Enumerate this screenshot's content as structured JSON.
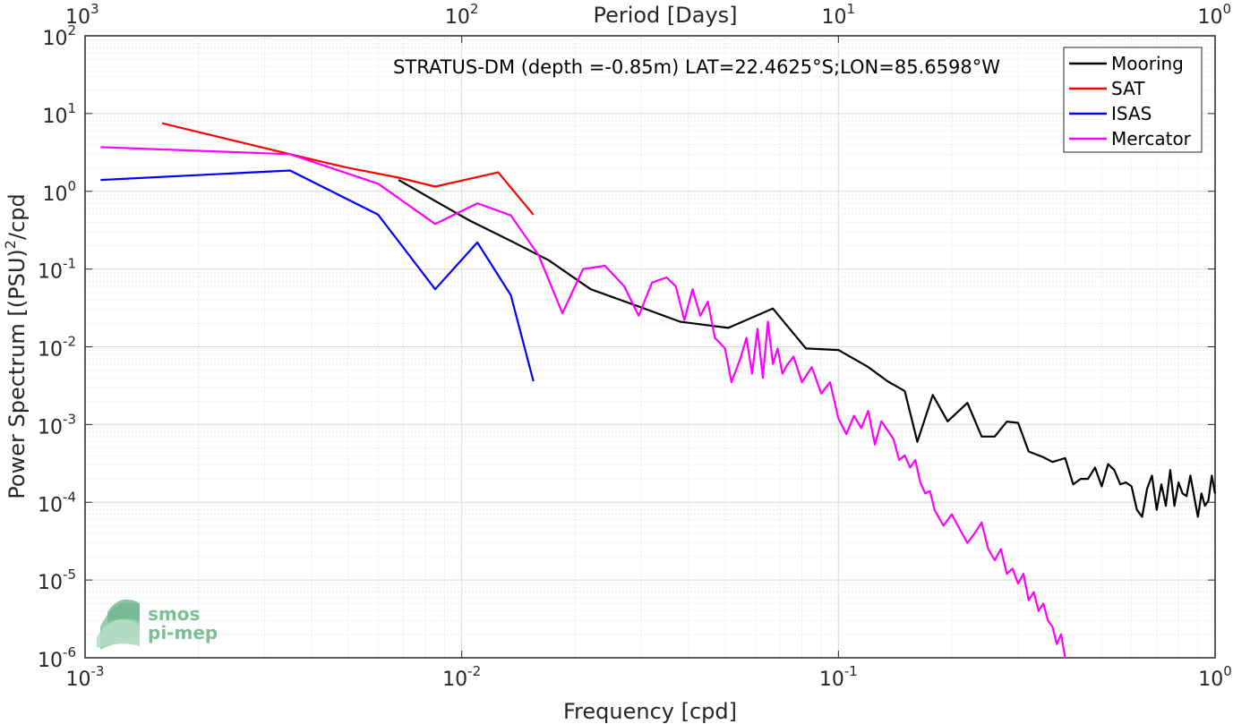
{
  "chart_data": {
    "type": "line",
    "title": "STRATUS-DM (depth =-0.85m) LAT=22.4625°S;LON=85.6598°W",
    "xlabel": "Frequency [cpd]",
    "ylabel": "Power Spectrum [(PSU)",
    "ylabel_sup": "2",
    "ylabel_suffix": "/cpd",
    "top_xlabel": "Period [Days]",
    "xscale": "log",
    "yscale": "log",
    "xlim": [
      0.001,
      1
    ],
    "ylim": [
      1e-06,
      100
    ],
    "grid": true,
    "legend_position": "top-right",
    "x_ticks": [
      {
        "value": 0.001,
        "base": "10",
        "exp": "-3"
      },
      {
        "value": 0.01,
        "base": "10",
        "exp": "-2"
      },
      {
        "value": 0.1,
        "base": "10",
        "exp": "-1"
      },
      {
        "value": 1,
        "base": "10",
        "exp": "0"
      }
    ],
    "y_ticks": [
      {
        "value": 1e-06,
        "base": "10",
        "exp": "-6"
      },
      {
        "value": 1e-05,
        "base": "10",
        "exp": "-5"
      },
      {
        "value": 0.0001,
        "base": "10",
        "exp": "-4"
      },
      {
        "value": 0.001,
        "base": "10",
        "exp": "-3"
      },
      {
        "value": 0.01,
        "base": "10",
        "exp": "-2"
      },
      {
        "value": 0.1,
        "base": "10",
        "exp": "-1"
      },
      {
        "value": 1,
        "base": "10",
        "exp": "0"
      },
      {
        "value": 10,
        "base": "10",
        "exp": "1"
      },
      {
        "value": 100,
        "base": "10",
        "exp": "2"
      }
    ],
    "top_ticks": [
      {
        "freq": 0.001,
        "base": "10",
        "exp": "3"
      },
      {
        "freq": 0.01,
        "base": "10",
        "exp": "2"
      },
      {
        "freq": 0.1,
        "base": "10",
        "exp": "1"
      },
      {
        "freq": 1,
        "base": "10",
        "exp": "0"
      }
    ],
    "series": [
      {
        "name": "Mooring",
        "color": "#000000",
        "points": [
          [
            0.0068,
            1.4
          ],
          [
            0.0085,
            0.75
          ],
          [
            0.0105,
            0.42
          ],
          [
            0.0135,
            0.23
          ],
          [
            0.017,
            0.13
          ],
          [
            0.022,
            0.055
          ],
          [
            0.03,
            0.032
          ],
          [
            0.038,
            0.021
          ],
          [
            0.051,
            0.0175
          ],
          [
            0.067,
            0.031
          ],
          [
            0.082,
            0.0095
          ],
          [
            0.1,
            0.0091
          ],
          [
            0.12,
            0.0055
          ],
          [
            0.135,
            0.0036
          ],
          [
            0.15,
            0.0027
          ],
          [
            0.162,
            0.0006
          ],
          [
            0.178,
            0.0024
          ],
          [
            0.195,
            0.0011
          ],
          [
            0.22,
            0.0019
          ],
          [
            0.24,
            0.0007
          ],
          [
            0.26,
            0.0007
          ],
          [
            0.28,
            0.00109
          ],
          [
            0.3,
            0.00105
          ],
          [
            0.32,
            0.00045
          ],
          [
            0.35,
            0.00038
          ],
          [
            0.37,
            0.00033
          ],
          [
            0.4,
            0.00037
          ],
          [
            0.42,
            0.00017
          ],
          [
            0.44,
            0.0002
          ],
          [
            0.46,
            0.0002
          ],
          [
            0.48,
            0.00028
          ],
          [
            0.5,
            0.00016
          ],
          [
            0.52,
            0.00031
          ],
          [
            0.54,
            0.00026
          ],
          [
            0.56,
            0.00017
          ],
          [
            0.58,
            0.00018
          ],
          [
            0.6,
            0.00016
          ],
          [
            0.62,
            8e-05
          ],
          [
            0.64,
            6.5e-05
          ],
          [
            0.66,
            0.00015
          ],
          [
            0.68,
            0.00022
          ],
          [
            0.7,
            8e-05
          ],
          [
            0.72,
            0.00017
          ],
          [
            0.74,
            9e-05
          ],
          [
            0.76,
            0.00026
          ],
          [
            0.78,
            9e-05
          ],
          [
            0.8,
            0.00018
          ],
          [
            0.82,
            0.00013
          ],
          [
            0.84,
            0.00012
          ],
          [
            0.86,
            0.00022
          ],
          [
            0.88,
            0.00012
          ],
          [
            0.9,
            6.5e-05
          ],
          [
            0.92,
            0.00013
          ],
          [
            0.94,
            9e-05
          ],
          [
            0.96,
            0.000105
          ],
          [
            0.98,
            0.00022
          ],
          [
            1.0,
            0.00013
          ]
        ]
      },
      {
        "name": "SAT",
        "color": "#ff0000",
        "points": [
          [
            0.0016,
            7.5
          ],
          [
            0.0035,
            3.0
          ],
          [
            0.005,
            2.0
          ],
          [
            0.0068,
            1.5
          ],
          [
            0.0085,
            1.15
          ],
          [
            0.0125,
            1.75
          ],
          [
            0.0155,
            0.5
          ]
        ]
      },
      {
        "name": "ISAS",
        "color": "#0000ff",
        "points": [
          [
            0.0011,
            1.4
          ],
          [
            0.0035,
            1.85
          ],
          [
            0.006,
            0.5
          ],
          [
            0.0085,
            0.055
          ],
          [
            0.011,
            0.22
          ],
          [
            0.0135,
            0.046
          ],
          [
            0.0155,
            0.0036
          ]
        ]
      },
      {
        "name": "Mercator",
        "color": "#ff00ff",
        "points": [
          [
            0.0011,
            3.7
          ],
          [
            0.0035,
            3.0
          ],
          [
            0.006,
            1.25
          ],
          [
            0.0085,
            0.38
          ],
          [
            0.011,
            0.7
          ],
          [
            0.0135,
            0.49
          ],
          [
            0.016,
            0.15
          ],
          [
            0.0185,
            0.027
          ],
          [
            0.021,
            0.1
          ],
          [
            0.024,
            0.11
          ],
          [
            0.027,
            0.06
          ],
          [
            0.0295,
            0.025
          ],
          [
            0.032,
            0.067
          ],
          [
            0.035,
            0.078
          ],
          [
            0.037,
            0.06
          ],
          [
            0.039,
            0.022
          ],
          [
            0.041,
            0.055
          ],
          [
            0.043,
            0.025
          ],
          [
            0.045,
            0.038
          ],
          [
            0.047,
            0.013
          ],
          [
            0.05,
            0.0095
          ],
          [
            0.052,
            0.0035
          ],
          [
            0.055,
            0.0072
          ],
          [
            0.057,
            0.013
          ],
          [
            0.059,
            0.0045
          ],
          [
            0.061,
            0.017
          ],
          [
            0.063,
            0.004
          ],
          [
            0.065,
            0.021
          ],
          [
            0.067,
            0.006
          ],
          [
            0.069,
            0.0095
          ],
          [
            0.071,
            0.0045
          ],
          [
            0.073,
            0.0058
          ],
          [
            0.076,
            0.0075
          ],
          [
            0.08,
            0.0035
          ],
          [
            0.085,
            0.0055
          ],
          [
            0.09,
            0.0025
          ],
          [
            0.095,
            0.0035
          ],
          [
            0.1,
            0.0012
          ],
          [
            0.105,
            0.00075
          ],
          [
            0.11,
            0.0013
          ],
          [
            0.115,
            0.0009
          ],
          [
            0.12,
            0.0015
          ],
          [
            0.125,
            0.00055
          ],
          [
            0.13,
            0.0011
          ],
          [
            0.14,
            0.00065
          ],
          [
            0.145,
            0.00035
          ],
          [
            0.15,
            0.0004
          ],
          [
            0.155,
            0.00028
          ],
          [
            0.16,
            0.00035
          ],
          [
            0.165,
            0.00018
          ],
          [
            0.17,
            0.00013
          ],
          [
            0.175,
            0.00014
          ],
          [
            0.18,
            8e-05
          ],
          [
            0.19,
            5e-05
          ],
          [
            0.2,
            7e-05
          ],
          [
            0.21,
            4.5e-05
          ],
          [
            0.22,
            3e-05
          ],
          [
            0.23,
            4e-05
          ],
          [
            0.24,
            5.5e-05
          ],
          [
            0.25,
            2.5e-05
          ],
          [
            0.26,
            1.8e-05
          ],
          [
            0.27,
            2.5e-05
          ],
          [
            0.28,
            1.2e-05
          ],
          [
            0.29,
            1.4e-05
          ],
          [
            0.3,
            9e-06
          ],
          [
            0.31,
            1.2e-05
          ],
          [
            0.32,
            5.5e-06
          ],
          [
            0.33,
            7e-06
          ],
          [
            0.34,
            4e-06
          ],
          [
            0.35,
            5e-06
          ],
          [
            0.36,
            3e-06
          ],
          [
            0.37,
            2.5e-06
          ],
          [
            0.38,
            1.5e-06
          ],
          [
            0.39,
            2e-06
          ],
          [
            0.4,
            1e-06
          ]
        ]
      }
    ]
  },
  "logo": {
    "line1": "smos",
    "line2": "pi-mep"
  }
}
